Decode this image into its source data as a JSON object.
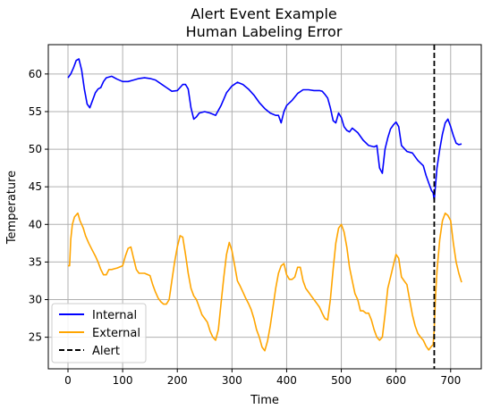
{
  "chart_data": {
    "type": "line",
    "title": "Alert Event Example",
    "subtitle": "Human Labeling Error",
    "xlabel": "Time",
    "ylabel": "Temperature",
    "xlim": [
      -36,
      756
    ],
    "ylim": [
      20.8,
      63.9
    ],
    "xticks": [
      0,
      100,
      200,
      300,
      400,
      500,
      600,
      700
    ],
    "yticks": [
      25,
      30,
      35,
      40,
      45,
      50,
      55,
      60
    ],
    "grid": true,
    "legend_position": "lower-left",
    "series": [
      {
        "name": "Internal",
        "color": "#0000ff",
        "x": [
          0,
          5,
          10,
          15,
          20,
          25,
          30,
          35,
          40,
          45,
          50,
          55,
          60,
          65,
          70,
          80,
          90,
          100,
          110,
          120,
          130,
          140,
          150,
          160,
          170,
          180,
          190,
          200,
          205,
          210,
          215,
          220,
          225,
          230,
          235,
          240,
          250,
          260,
          270,
          280,
          290,
          300,
          310,
          320,
          330,
          340,
          350,
          360,
          370,
          380,
          385,
          390,
          395,
          400,
          410,
          420,
          430,
          440,
          450,
          460,
          465,
          470,
          475,
          480,
          485,
          490,
          495,
          500,
          505,
          510,
          515,
          520,
          530,
          540,
          550,
          560,
          565,
          570,
          575,
          580,
          585,
          590,
          595,
          600,
          605,
          610,
          620,
          630,
          640,
          650,
          655,
          660,
          665,
          668,
          670,
          672,
          675,
          680,
          685,
          690,
          695,
          700,
          705,
          710,
          715,
          720
        ],
        "y": [
          59.5,
          60.0,
          60.8,
          61.8,
          62.0,
          60.5,
          58.0,
          56.0,
          55.5,
          56.5,
          57.5,
          58.0,
          58.2,
          59.0,
          59.5,
          59.7,
          59.3,
          59.0,
          59.0,
          59.2,
          59.4,
          59.5,
          59.4,
          59.2,
          58.7,
          58.2,
          57.7,
          57.8,
          58.2,
          58.6,
          58.6,
          58.0,
          55.5,
          54.0,
          54.3,
          54.8,
          55.0,
          54.8,
          54.5,
          55.8,
          57.5,
          58.4,
          58.9,
          58.6,
          58.0,
          57.2,
          56.2,
          55.4,
          54.8,
          54.5,
          54.5,
          53.5,
          55.0,
          55.8,
          56.5,
          57.4,
          57.9,
          57.9,
          57.8,
          57.8,
          57.7,
          57.3,
          56.8,
          55.5,
          53.8,
          53.5,
          54.8,
          54.2,
          53.0,
          52.5,
          52.3,
          52.8,
          52.2,
          51.2,
          50.5,
          50.3,
          50.5,
          47.5,
          46.8,
          50.0,
          51.5,
          52.7,
          53.2,
          53.6,
          53.0,
          50.5,
          49.7,
          49.5,
          48.5,
          47.8,
          46.5,
          45.5,
          44.5,
          44.2,
          43.2,
          45.0,
          47.5,
          50.0,
          52.0,
          53.5,
          54.0,
          53.0,
          51.8,
          50.8,
          50.6,
          50.7
        ]
      },
      {
        "name": "External",
        "color": "#ffa500",
        "x": [
          0,
          3,
          5,
          8,
          12,
          18,
          22,
          28,
          32,
          38,
          45,
          50,
          55,
          60,
          65,
          70,
          75,
          80,
          90,
          100,
          105,
          110,
          115,
          120,
          125,
          130,
          135,
          140,
          150,
          155,
          160,
          165,
          170,
          175,
          180,
          185,
          190,
          195,
          200,
          205,
          210,
          215,
          220,
          225,
          230,
          235,
          240,
          245,
          250,
          255,
          260,
          265,
          270,
          275,
          280,
          285,
          290,
          295,
          300,
          305,
          310,
          315,
          320,
          325,
          330,
          335,
          340,
          345,
          350,
          355,
          360,
          365,
          370,
          375,
          380,
          385,
          390,
          395,
          400,
          405,
          410,
          415,
          420,
          425,
          430,
          435,
          440,
          445,
          450,
          455,
          460,
          465,
          470,
          475,
          480,
          485,
          490,
          495,
          500,
          505,
          510,
          515,
          520,
          525,
          530,
          535,
          540,
          545,
          550,
          555,
          560,
          565,
          570,
          575,
          580,
          585,
          590,
          595,
          600,
          605,
          610,
          615,
          620,
          625,
          630,
          635,
          640,
          645,
          650,
          655,
          660,
          665,
          668,
          670,
          672,
          675,
          680,
          685,
          690,
          695,
          700,
          705,
          710,
          715,
          720
        ],
        "y": [
          34.5,
          34.5,
          38.0,
          40.0,
          41.0,
          41.5,
          40.5,
          39.5,
          38.5,
          37.5,
          36.5,
          35.8,
          35.0,
          34.0,
          33.3,
          33.3,
          34.0,
          34.0,
          34.2,
          34.5,
          35.8,
          36.8,
          37.0,
          35.5,
          34.0,
          33.5,
          33.5,
          33.5,
          33.2,
          32.0,
          31.0,
          30.2,
          29.7,
          29.4,
          29.4,
          30.0,
          32.5,
          35.0,
          37.0,
          38.5,
          38.3,
          36.0,
          33.5,
          31.5,
          30.5,
          30.0,
          29.0,
          28.0,
          27.5,
          27.0,
          25.8,
          25.0,
          24.6,
          26.0,
          29.5,
          33.0,
          36.0,
          37.6,
          36.5,
          34.5,
          32.5,
          31.8,
          31.0,
          30.2,
          29.5,
          28.7,
          27.5,
          26.0,
          25.0,
          23.7,
          23.2,
          24.5,
          26.5,
          29.0,
          31.5,
          33.5,
          34.5,
          34.8,
          33.3,
          32.7,
          32.7,
          33.0,
          34.3,
          34.3,
          32.5,
          31.5,
          31.0,
          30.5,
          30.0,
          29.5,
          29.0,
          28.2,
          27.5,
          27.3,
          30.0,
          34.0,
          37.5,
          39.5,
          40.0,
          39.0,
          37.0,
          34.3,
          32.5,
          30.8,
          30.0,
          28.5,
          28.5,
          28.2,
          28.2,
          27.3,
          26.0,
          25.0,
          24.6,
          25.0,
          28.0,
          31.5,
          33.0,
          34.5,
          36.0,
          35.5,
          33.0,
          32.5,
          32.0,
          30.0,
          28.0,
          26.5,
          25.5,
          25.0,
          24.6,
          23.8,
          23.3,
          23.8,
          24.0,
          26.0,
          30.0,
          33.8,
          38.0,
          40.5,
          41.5,
          41.2,
          40.5,
          37.5,
          35.0,
          33.5,
          32.3
        ]
      }
    ],
    "vlines": [
      {
        "name": "Alert",
        "x": 670,
        "color": "#000000",
        "style": "dashed"
      }
    ]
  }
}
